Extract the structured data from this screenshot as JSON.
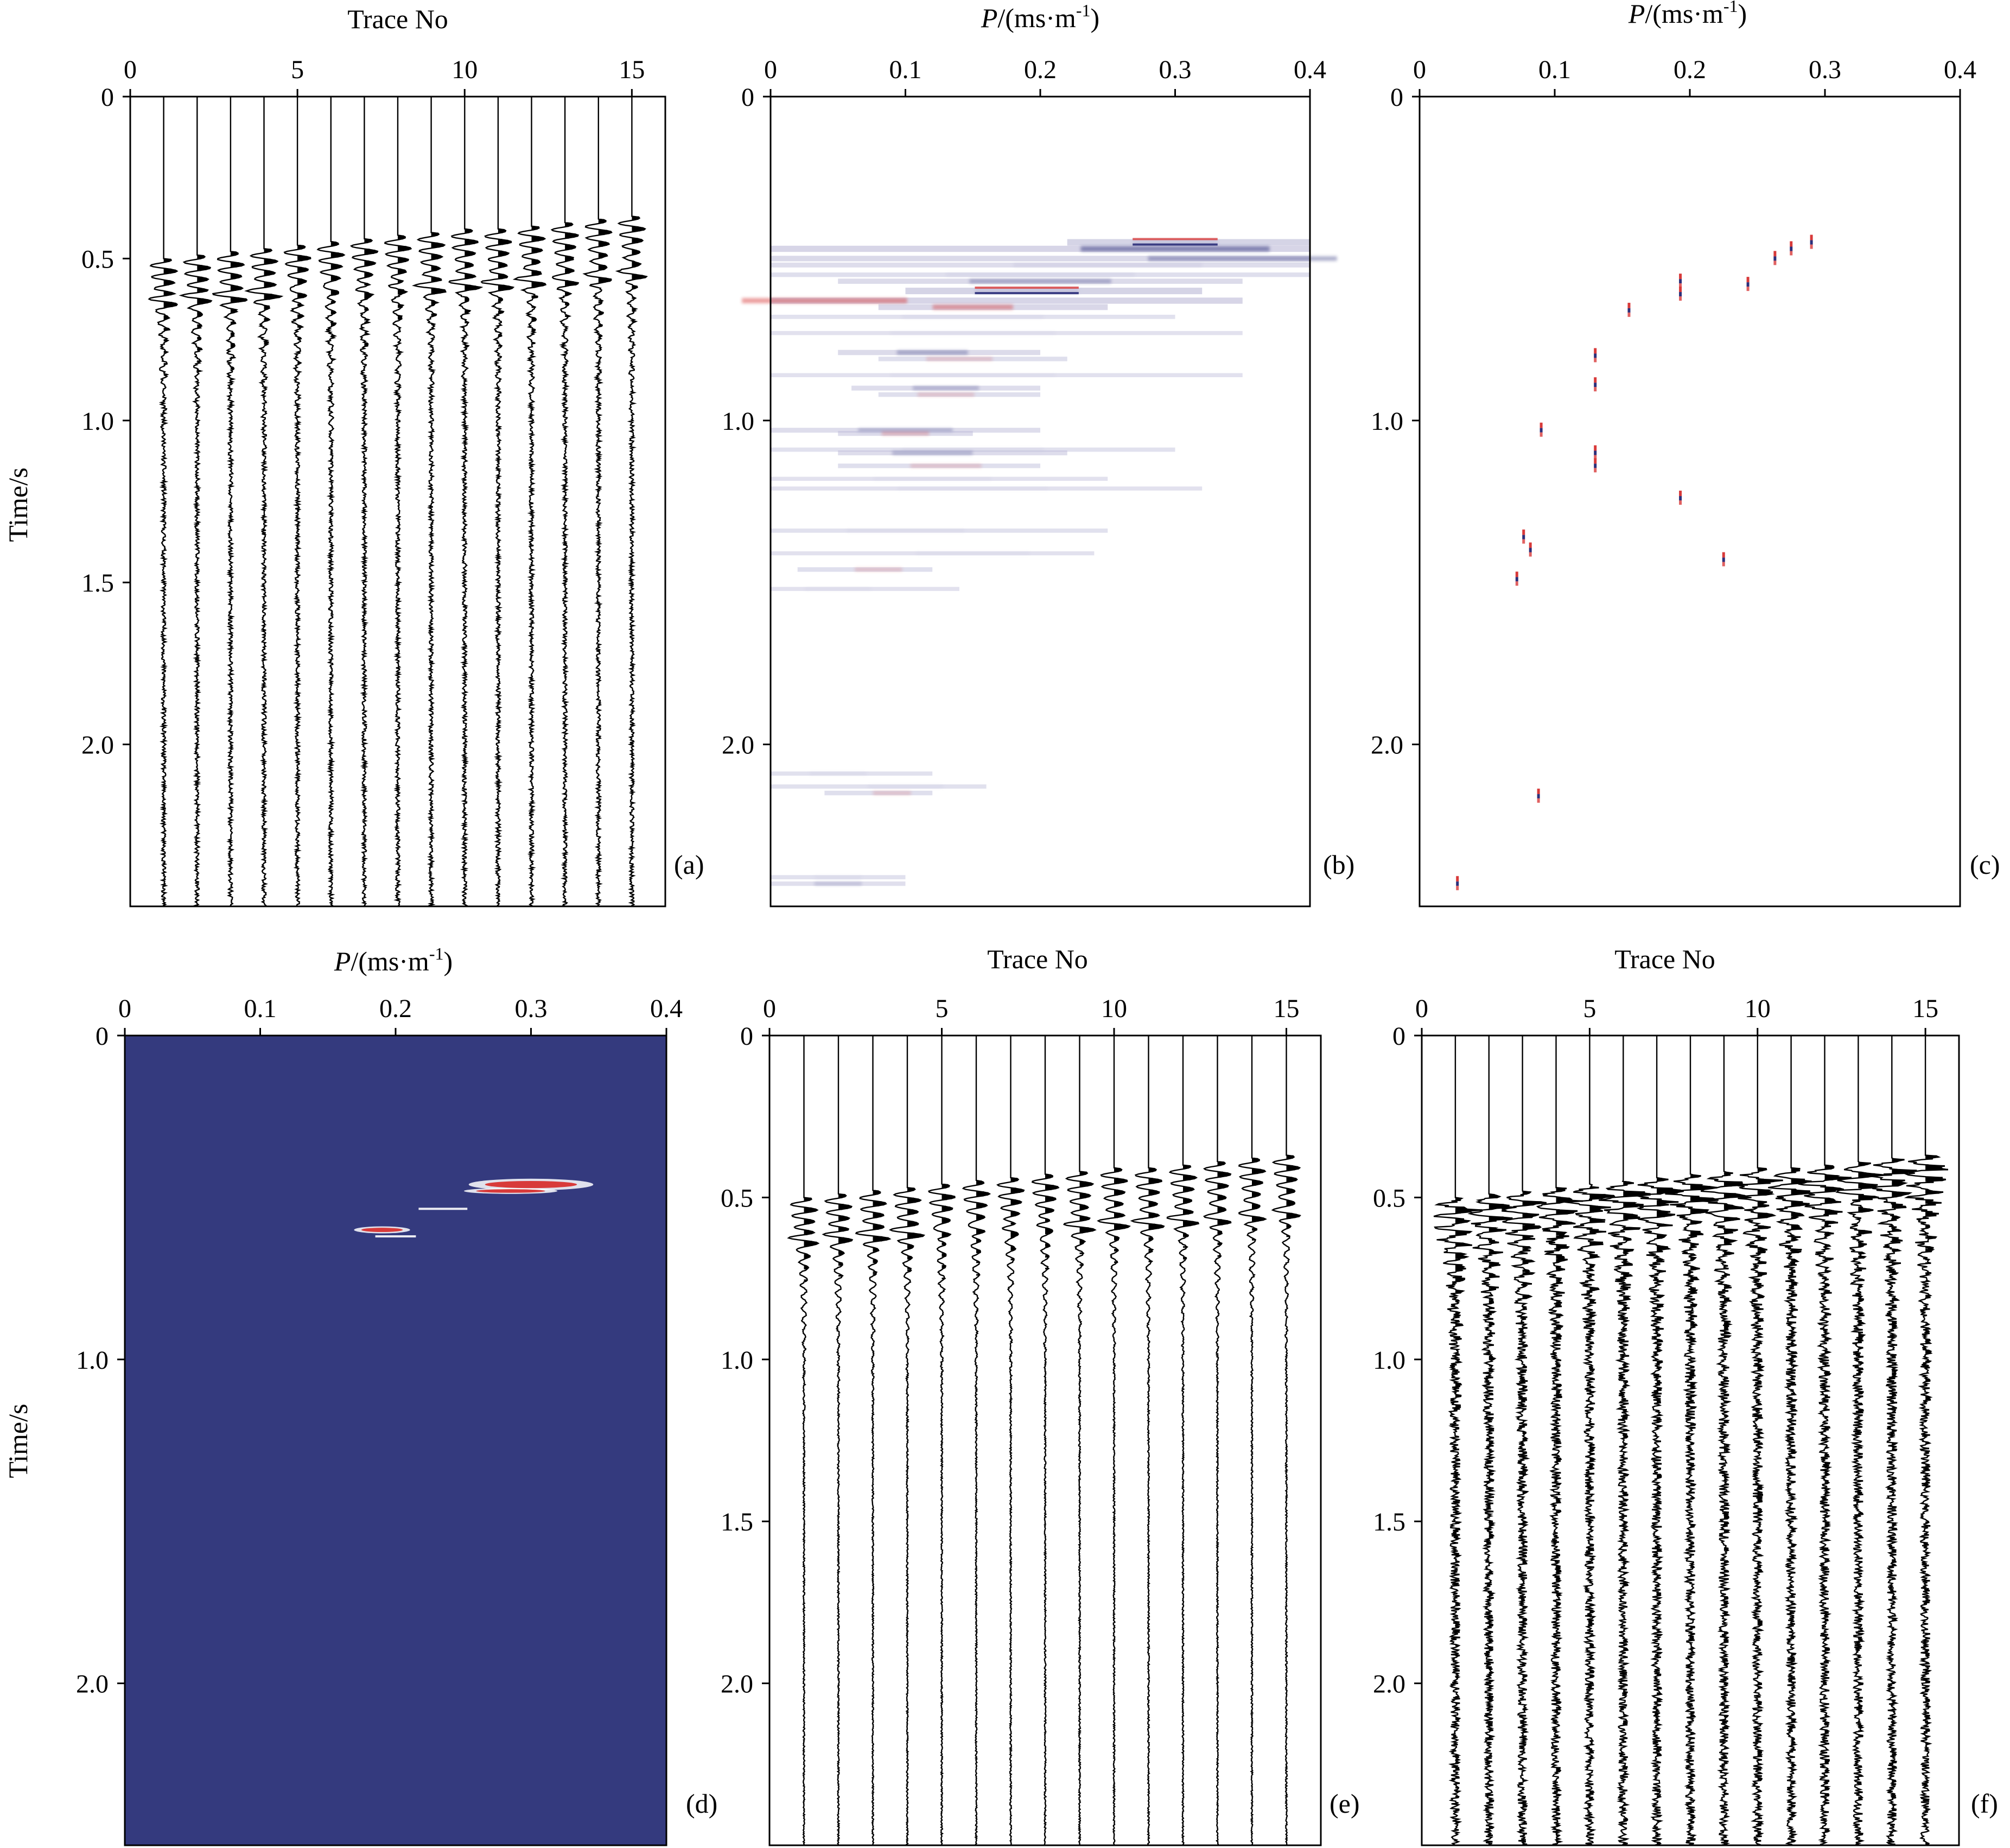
{
  "figure": {
    "panels": [
      {
        "id": "a",
        "kind": "seismic",
        "tag": "(a)",
        "xlabel": "Trace No",
        "ylabel": "Time/s",
        "xticks": [
          "0",
          "5",
          "10",
          "15"
        ],
        "yticks": [
          "0",
          "0.5",
          "1.0",
          "1.5",
          "2.0"
        ]
      },
      {
        "id": "b",
        "kind": "radon-band",
        "tag": "(b)",
        "xlabel_italic": "P",
        "xlabel_rest": "/(ms·m",
        "xlabel_sup": "-1",
        "xlabel_close": ")",
        "xticks": [
          "0",
          "0.1",
          "0.2",
          "0.3",
          "0.4"
        ],
        "yticks": [
          "0",
          "1.0",
          "2.0"
        ]
      },
      {
        "id": "c",
        "kind": "radon-sparse",
        "tag": "(c)",
        "xlabel_italic": "P",
        "xlabel_rest": "/(ms·m",
        "xlabel_sup": "-1",
        "xlabel_close": ")",
        "xticks": [
          "0",
          "0.1",
          "0.2",
          "0.3",
          "0.4"
        ],
        "yticks": [
          "0",
          "1.0",
          "2.0"
        ]
      },
      {
        "id": "d",
        "kind": "radon-mask",
        "tag": "(d)",
        "xlabel_italic": "P",
        "xlabel_rest": "/(ms·m",
        "xlabel_sup": "-1",
        "xlabel_close": ")",
        "ylabel": "Time/s",
        "xticks": [
          "0",
          "0.1",
          "0.2",
          "0.3",
          "0.4"
        ],
        "yticks": [
          "0",
          "1.0",
          "2.0"
        ]
      },
      {
        "id": "e",
        "kind": "seismic",
        "tag": "(e)",
        "xlabel": "Trace No",
        "xticks": [
          "0",
          "5",
          "10",
          "15"
        ],
        "yticks": [
          "0",
          "0.5",
          "1.0",
          "1.5",
          "2.0"
        ]
      },
      {
        "id": "f",
        "kind": "seismic",
        "tag": "(f)",
        "xlabel": "Trace No",
        "xticks": [
          "0",
          "5",
          "10",
          "15"
        ],
        "yticks": [
          "0",
          "0.5",
          "1.0",
          "1.5",
          "2.0"
        ]
      }
    ],
    "colors": {
      "ink": "#000000",
      "positive": "#d83a3a",
      "negative": "#2c2f7a",
      "weak": "#b9b7d6",
      "mask_bg": "#343a7e"
    }
  },
  "chart_data": [
    {
      "panel": "a",
      "type": "line",
      "title": "",
      "xlabel": "Trace No",
      "ylabel": "Time/s",
      "xlim": [
        0,
        16
      ],
      "ylim": [
        0,
        2.5
      ],
      "y_inverted": true,
      "x_ticks": [
        0,
        5,
        10,
        15
      ],
      "y_ticks": [
        0,
        0.5,
        1.0,
        1.5,
        2.0
      ],
      "traces": [
        1,
        2,
        3,
        4,
        5,
        6,
        7,
        8,
        9,
        10,
        11,
        12,
        13,
        14,
        15
      ],
      "first_arrival_s": [
        0.53,
        0.52,
        0.51,
        0.5,
        0.49,
        0.48,
        0.47,
        0.46,
        0.45,
        0.44,
        0.44,
        0.43,
        0.42,
        0.41,
        0.4
      ],
      "second_event_s": [
        0.63,
        0.62,
        0.62,
        0.61,
        0.61,
        0.6,
        0.6,
        0.59,
        0.59,
        0.58,
        0.58,
        0.57,
        0.57,
        0.56,
        0.55
      ],
      "noise": "moderate",
      "grid": false
    },
    {
      "panel": "b",
      "type": "heatmap",
      "xlabel": "P/(ms·m-1)",
      "ylabel": "Time/s",
      "xlim": [
        0,
        0.4
      ],
      "ylim": [
        0,
        2.5
      ],
      "y_inverted": true,
      "x_ticks": [
        0,
        0.1,
        0.2,
        0.3,
        0.4
      ],
      "y_ticks": [
        0,
        1.0,
        2.0
      ],
      "bands": [
        {
          "t": 0.45,
          "p0": 0.22,
          "p1": 0.4,
          "peak_p": 0.3,
          "sign": "mixed",
          "strength": 1.0
        },
        {
          "t": 0.47,
          "p0": 0.0,
          "p1": 0.4,
          "peak_p": 0.3,
          "sign": "neg",
          "strength": 0.9
        },
        {
          "t": 0.5,
          "p0": 0.0,
          "p1": 0.4,
          "peak_p": 0.35,
          "sign": "neg",
          "strength": 0.7
        },
        {
          "t": 0.52,
          "p0": 0.0,
          "p1": 0.4,
          "peak_p": 0.25,
          "sign": "weak",
          "strength": 0.5
        },
        {
          "t": 0.55,
          "p0": 0.0,
          "p1": 0.4,
          "peak_p": 0.2,
          "sign": "weak",
          "strength": 0.4
        },
        {
          "t": 0.57,
          "p0": 0.05,
          "p1": 0.35,
          "peak_p": 0.2,
          "sign": "neg",
          "strength": 0.6
        },
        {
          "t": 0.6,
          "p0": 0.1,
          "p1": 0.32,
          "peak_p": 0.19,
          "sign": "mixed",
          "strength": 1.0
        },
        {
          "t": 0.63,
          "p0": 0.0,
          "p1": 0.35,
          "peak_p": 0.04,
          "sign": "pos",
          "strength": 0.9
        },
        {
          "t": 0.65,
          "p0": 0.08,
          "p1": 0.25,
          "peak_p": 0.15,
          "sign": "pos",
          "strength": 0.8
        },
        {
          "t": 0.68,
          "p0": 0.0,
          "p1": 0.3,
          "peak_p": 0.15,
          "sign": "weak",
          "strength": 0.3
        },
        {
          "t": 0.73,
          "p0": 0.0,
          "p1": 0.35,
          "peak_p": 0.15,
          "sign": "weak",
          "strength": 0.25
        },
        {
          "t": 0.79,
          "p0": 0.05,
          "p1": 0.2,
          "peak_p": 0.12,
          "sign": "neg",
          "strength": 0.6
        },
        {
          "t": 0.81,
          "p0": 0.08,
          "p1": 0.22,
          "peak_p": 0.14,
          "sign": "pos",
          "strength": 0.4
        },
        {
          "t": 0.86,
          "p0": 0.0,
          "p1": 0.35,
          "peak_p": 0.15,
          "sign": "weak",
          "strength": 0.25
        },
        {
          "t": 0.9,
          "p0": 0.06,
          "p1": 0.2,
          "peak_p": 0.13,
          "sign": "neg",
          "strength": 0.5
        },
        {
          "t": 0.92,
          "p0": 0.08,
          "p1": 0.2,
          "peak_p": 0.13,
          "sign": "pos",
          "strength": 0.4
        },
        {
          "t": 1.03,
          "p0": 0.0,
          "p1": 0.2,
          "peak_p": 0.1,
          "sign": "neg",
          "strength": 0.5
        },
        {
          "t": 1.04,
          "p0": 0.05,
          "p1": 0.15,
          "peak_p": 0.1,
          "sign": "pos",
          "strength": 0.5
        },
        {
          "t": 1.09,
          "p0": 0.0,
          "p1": 0.3,
          "peak_p": 0.15,
          "sign": "weak",
          "strength": 0.3
        },
        {
          "t": 1.1,
          "p0": 0.05,
          "p1": 0.22,
          "peak_p": 0.12,
          "sign": "neg",
          "strength": 0.5
        },
        {
          "t": 1.14,
          "p0": 0.05,
          "p1": 0.2,
          "peak_p": 0.13,
          "sign": "pos",
          "strength": 0.4
        },
        {
          "t": 1.18,
          "p0": 0.0,
          "p1": 0.25,
          "peak_p": 0.12,
          "sign": "weak",
          "strength": 0.25
        },
        {
          "t": 1.21,
          "p0": 0.0,
          "p1": 0.32,
          "peak_p": 0.15,
          "sign": "weak",
          "strength": 0.25
        },
        {
          "t": 1.34,
          "p0": 0.0,
          "p1": 0.25,
          "peak_p": 0.1,
          "sign": "weak",
          "strength": 0.3
        },
        {
          "t": 1.41,
          "p0": 0.0,
          "p1": 0.24,
          "peak_p": 0.15,
          "sign": "weak",
          "strength": 0.25
        },
        {
          "t": 1.46,
          "p0": 0.02,
          "p1": 0.12,
          "peak_p": 0.08,
          "sign": "pos",
          "strength": 0.4
        },
        {
          "t": 1.52,
          "p0": 0.0,
          "p1": 0.14,
          "peak_p": 0.05,
          "sign": "weak",
          "strength": 0.25
        },
        {
          "t": 2.09,
          "p0": 0.0,
          "p1": 0.12,
          "peak_p": 0.05,
          "sign": "weak",
          "strength": 0.3
        },
        {
          "t": 2.13,
          "p0": 0.0,
          "p1": 0.16,
          "peak_p": 0.1,
          "sign": "weak",
          "strength": 0.3
        },
        {
          "t": 2.15,
          "p0": 0.04,
          "p1": 0.12,
          "peak_p": 0.09,
          "sign": "pos",
          "strength": 0.4
        },
        {
          "t": 2.41,
          "p0": 0.0,
          "p1": 0.1,
          "peak_p": 0.05,
          "sign": "weak",
          "strength": 0.3
        },
        {
          "t": 2.43,
          "p0": 0.0,
          "p1": 0.1,
          "peak_p": 0.05,
          "sign": "neg",
          "strength": 0.35
        }
      ]
    },
    {
      "panel": "c",
      "type": "scatter",
      "xlabel": "P/(ms·m-1)",
      "ylabel": "Time/s",
      "xlim": [
        0,
        0.4
      ],
      "ylim": [
        0,
        2.5
      ],
      "y_inverted": true,
      "x_ticks": [
        0,
        0.1,
        0.2,
        0.3,
        0.4
      ],
      "y_ticks": [
        0,
        1.0,
        2.0
      ],
      "points": [
        {
          "p": 0.29,
          "t": 0.45
        },
        {
          "p": 0.275,
          "t": 0.47
        },
        {
          "p": 0.263,
          "t": 0.5
        },
        {
          "p": 0.243,
          "t": 0.58
        },
        {
          "p": 0.193,
          "t": 0.57
        },
        {
          "p": 0.193,
          "t": 0.61
        },
        {
          "p": 0.155,
          "t": 0.66
        },
        {
          "p": 0.13,
          "t": 0.8
        },
        {
          "p": 0.13,
          "t": 0.89
        },
        {
          "p": 0.09,
          "t": 1.03
        },
        {
          "p": 0.13,
          "t": 1.1
        },
        {
          "p": 0.13,
          "t": 1.14
        },
        {
          "p": 0.193,
          "t": 1.24
        },
        {
          "p": 0.077,
          "t": 1.36
        },
        {
          "p": 0.082,
          "t": 1.4
        },
        {
          "p": 0.072,
          "t": 1.49
        },
        {
          "p": 0.225,
          "t": 1.43
        },
        {
          "p": 0.088,
          "t": 2.16
        },
        {
          "p": 0.028,
          "t": 2.43
        }
      ]
    },
    {
      "panel": "d",
      "type": "heatmap",
      "xlabel": "P/(ms·m-1)",
      "ylabel": "Time/s",
      "xlim": [
        0,
        0.4
      ],
      "ylim": [
        0,
        2.5
      ],
      "y_inverted": true,
      "x_ticks": [
        0,
        0.1,
        0.2,
        0.3,
        0.4
      ],
      "y_ticks": [
        0,
        1.0,
        2.0
      ],
      "background": "uniform",
      "blobs": [
        {
          "p": 0.3,
          "t": 0.46,
          "dp": 0.04,
          "dt": 0.02
        },
        {
          "p": 0.285,
          "t": 0.48,
          "dp": 0.03,
          "dt": 0.01
        },
        {
          "p": 0.19,
          "t": 0.6,
          "dp": 0.018,
          "dt": 0.012
        }
      ]
    },
    {
      "panel": "e",
      "type": "line",
      "xlabel": "Trace No",
      "ylabel": "Time/s",
      "xlim": [
        0,
        16
      ],
      "ylim": [
        0,
        2.5
      ],
      "y_inverted": true,
      "x_ticks": [
        0,
        5,
        10,
        15
      ],
      "y_ticks": [
        0,
        0.5,
        1.0,
        1.5,
        2.0
      ],
      "traces": [
        1,
        2,
        3,
        4,
        5,
        6,
        7,
        8,
        9,
        10,
        11,
        12,
        13,
        14,
        15
      ],
      "first_arrival_s": [
        0.53,
        0.52,
        0.51,
        0.5,
        0.49,
        0.48,
        0.47,
        0.46,
        0.45,
        0.44,
        0.44,
        0.43,
        0.42,
        0.41,
        0.4
      ],
      "second_event_s": [
        0.63,
        0.62,
        0.62,
        0.61,
        0.61,
        0.6,
        0.6,
        0.59,
        0.59,
        0.58,
        0.58,
        0.57,
        0.57,
        0.56,
        0.55
      ],
      "noise": "low",
      "grid": false
    },
    {
      "panel": "f",
      "type": "line",
      "xlabel": "Trace No",
      "ylabel": "Time/s",
      "xlim": [
        0,
        16
      ],
      "ylim": [
        0,
        2.5
      ],
      "y_inverted": true,
      "x_ticks": [
        0,
        5,
        10,
        15
      ],
      "y_ticks": [
        0,
        0.5,
        1.0,
        1.5,
        2.0
      ],
      "traces": [
        1,
        2,
        3,
        4,
        5,
        6,
        7,
        8,
        9,
        10,
        11,
        12,
        13,
        14,
        15
      ],
      "first_arrival_s": [
        0.53,
        0.52,
        0.51,
        0.5,
        0.49,
        0.48,
        0.47,
        0.46,
        0.45,
        0.44,
        0.44,
        0.43,
        0.42,
        0.41,
        0.4
      ],
      "noise": "high",
      "grid": false
    }
  ]
}
